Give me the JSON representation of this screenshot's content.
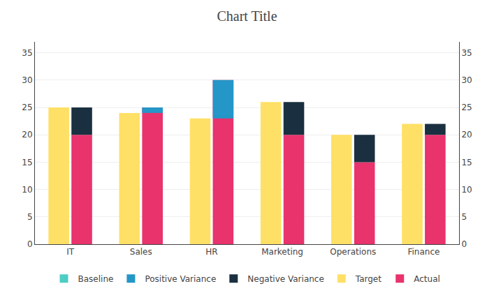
{
  "chart_data": {
    "type": "bar",
    "title": "Chart Title",
    "categories": [
      "IT",
      "Sales",
      "HR",
      "Marketing",
      "Operations",
      "Finance"
    ],
    "series": [
      {
        "name": "Baseline",
        "color": "#4ECDC4",
        "values": [
          null,
          null,
          null,
          null,
          null,
          null
        ]
      },
      {
        "name": "Positive Variance",
        "color": "#2496C8",
        "values": [
          null,
          1,
          7,
          null,
          null,
          null
        ],
        "base": [
          null,
          24,
          23,
          null,
          null,
          null
        ]
      },
      {
        "name": "Negative Variance",
        "color": "#1A3040",
        "values": [
          5,
          null,
          null,
          6,
          5,
          2
        ],
        "base": [
          20,
          null,
          null,
          20,
          15,
          20
        ]
      },
      {
        "name": "Target",
        "color": "#FFE066",
        "values": [
          25,
          24,
          23,
          26,
          20,
          22
        ]
      },
      {
        "name": "Actual",
        "color": "#E8336D",
        "values": [
          20,
          25,
          30,
          20,
          15,
          20
        ]
      }
    ],
    "ylim": [
      0,
      37
    ],
    "yticks": [
      0,
      5,
      10,
      15,
      20,
      25,
      30,
      35
    ],
    "y2lim": [
      0,
      37
    ],
    "y2ticks": [
      0,
      5,
      10,
      15,
      20,
      25,
      30,
      35
    ],
    "grid": true,
    "legend": "bottom"
  }
}
